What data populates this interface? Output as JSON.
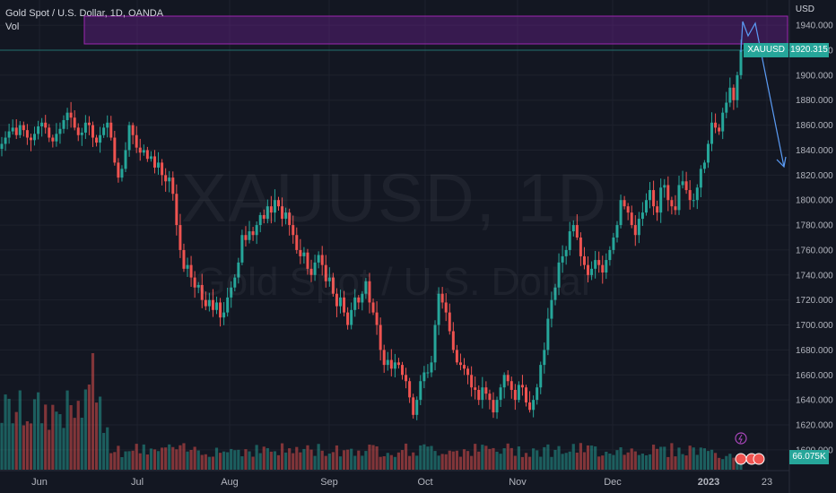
{
  "header": {
    "title": "Gold Spot / U.S. Dollar, 1D, OANDA",
    "volume_label": "Vol",
    "currency": "USD"
  },
  "watermark": {
    "symbol": "XAUUSD, 1D",
    "description": "Gold Spot / U.S. Dollar"
  },
  "price_scale": {
    "ticks": [
      "1940.000",
      "1920.000",
      "1900.000",
      "1880.000",
      "1860.000",
      "1840.000",
      "1820.000",
      "1800.000",
      "1780.000",
      "1760.000",
      "1740.000",
      "1720.000",
      "1700.000",
      "1680.000",
      "1660.000",
      "1640.000",
      "1620.000",
      "1600.000"
    ],
    "last_price": "1920.315",
    "symbol": "XAUUSD",
    "volume_value": "66.075K"
  },
  "time_axis": {
    "labels": [
      "Jun",
      "Jul",
      "Aug",
      "Sep",
      "Oct",
      "Nov",
      "Dec",
      "2023",
      "23"
    ]
  },
  "colors": {
    "background": "#131722",
    "up": "#26a69a",
    "down": "#ef5350",
    "zone_fill": "#7b1fa2",
    "projection": "#5b9cf6",
    "grid": "#1e222d"
  },
  "chart_data": {
    "type": "candlestick",
    "symbol": "XAUUSD",
    "timeframe": "1D",
    "ylim": [
      1600,
      1950
    ],
    "x_ticks": [
      "Jun",
      "Jul",
      "Aug",
      "Sep",
      "Oct",
      "Nov",
      "Dec",
      "2023",
      "23"
    ],
    "closes": [
      1845,
      1850,
      1855,
      1858,
      1852,
      1860,
      1856,
      1850,
      1848,
      1853,
      1859,
      1862,
      1858,
      1850,
      1847,
      1853,
      1857,
      1864,
      1870,
      1866,
      1858,
      1852,
      1854,
      1862,
      1860,
      1850,
      1846,
      1852,
      1858,
      1862,
      1850,
      1830,
      1818,
      1825,
      1840,
      1860,
      1852,
      1842,
      1838,
      1840,
      1833,
      1835,
      1826,
      1830,
      1820,
      1815,
      1818,
      1805,
      1780,
      1760,
      1745,
      1748,
      1738,
      1730,
      1732,
      1720,
      1715,
      1720,
      1712,
      1718,
      1706,
      1710,
      1722,
      1730,
      1738,
      1750,
      1772,
      1768,
      1775,
      1772,
      1780,
      1788,
      1785,
      1795,
      1790,
      1800,
      1795,
      1785,
      1790,
      1780,
      1772,
      1760,
      1755,
      1758,
      1745,
      1740,
      1750,
      1756,
      1748,
      1735,
      1738,
      1725,
      1715,
      1722,
      1710,
      1700,
      1712,
      1722,
      1718,
      1725,
      1735,
      1718,
      1710,
      1700,
      1680,
      1668,
      1672,
      1665,
      1670,
      1668,
      1660,
      1655,
      1642,
      1628,
      1640,
      1655,
      1662,
      1662,
      1670,
      1700,
      1725,
      1718,
      1710,
      1695,
      1680,
      1670,
      1668,
      1665,
      1660,
      1650,
      1648,
      1640,
      1650,
      1645,
      1640,
      1630,
      1640,
      1650,
      1660,
      1655,
      1648,
      1640,
      1652,
      1650,
      1638,
      1632,
      1640,
      1650,
      1668,
      1680,
      1705,
      1720,
      1730,
      1750,
      1755,
      1760,
      1775,
      1780,
      1770,
      1755,
      1748,
      1740,
      1745,
      1752,
      1748,
      1742,
      1752,
      1760,
      1770,
      1780,
      1800,
      1795,
      1790,
      1780,
      1772,
      1785,
      1790,
      1800,
      1808,
      1795,
      1790,
      1810,
      1812,
      1800,
      1795,
      1792,
      1812,
      1815,
      1808,
      1800,
      1800,
      1810,
      1825,
      1830,
      1845,
      1862,
      1858,
      1855,
      1870,
      1878,
      1890,
      1880,
      1900,
      1920
    ]
  }
}
